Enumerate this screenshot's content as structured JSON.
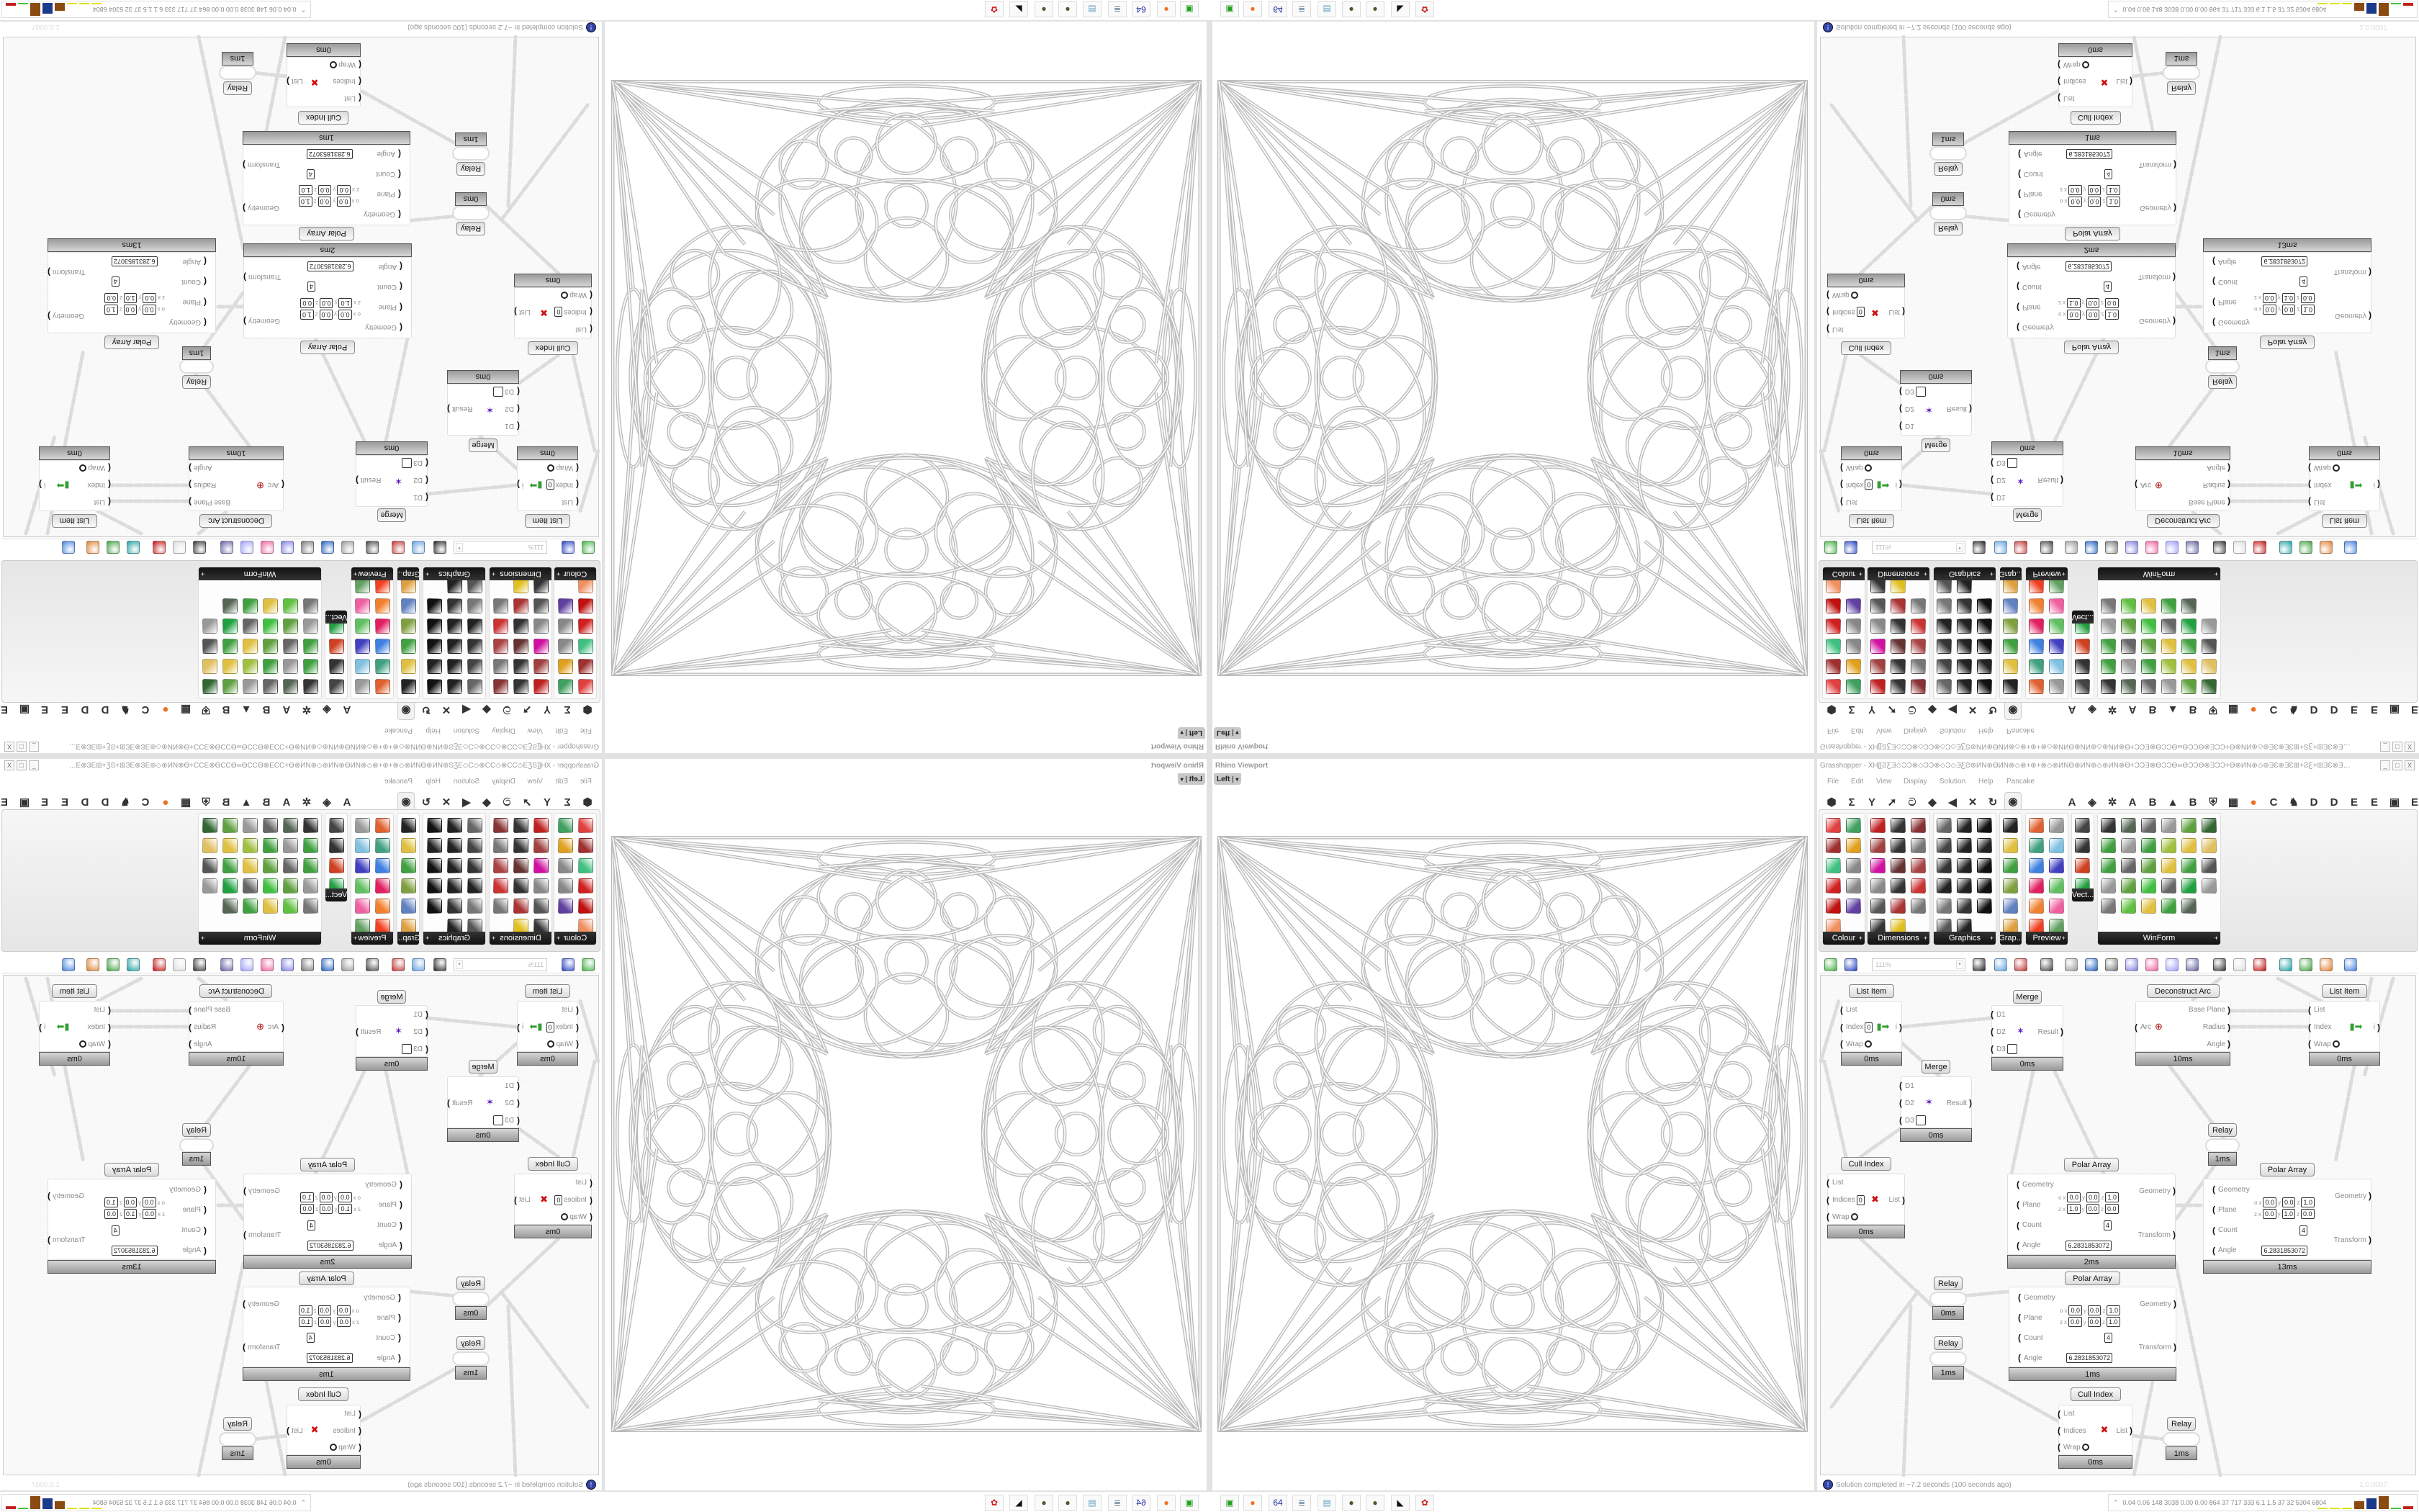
{
  "viewport": {
    "title": "Rhino Viewport",
    "view_label": "Left",
    "caret": "▾",
    "line_color": "#b8b8b8"
  },
  "gh": {
    "title": "Grasshopper - XH[[ƧƸƎ◇ƆƆ⊗◇ƆƆ⊗◇Ɔ◇ƎƸƧ⊕ИN⊕ӨИN⊗◇⊗+⊕+⊗◇⊗ИNӨ⊕ИN⊕◇⊕ИN⊗Ө+ƆƆƎ⊗ӨƆƆӨ∞ӨƆƆӨ⊗ƎƆƆ+Ө⊗ИN⊕◇⊕ƎƐ⊗ƎƐ⊞+ƧƸ+⊞ƎƐ⊗ƎƐ⊕◇⊕⊗ƆƆƎƐ⊞+ƆƆ...",
    "window_buttons": [
      "_",
      "□",
      "X"
    ],
    "menu": [
      "File",
      "Edit",
      "View",
      "Display",
      "Solution",
      "Help",
      "Pancake"
    ],
    "tabs": [
      {
        "name": "params",
        "glyph": "⬢"
      },
      {
        "name": "maths",
        "glyph": "Σ"
      },
      {
        "name": "sets",
        "glyph": "Y"
      },
      {
        "name": "vector",
        "glyph": "➚"
      },
      {
        "name": "curve",
        "glyph": "ට"
      },
      {
        "name": "surface",
        "glyph": "◆"
      },
      {
        "name": "mesh",
        "glyph": "◀"
      },
      {
        "name": "intersect",
        "glyph": "✕"
      },
      {
        "name": "transform",
        "glyph": "↻"
      },
      {
        "name": "display",
        "glyph": "◉",
        "selected": true
      },
      {
        "name": "tab-a1",
        "glyph": "A"
      },
      {
        "name": "leaf",
        "glyph": "◈"
      },
      {
        "name": "gear",
        "glyph": "✲"
      },
      {
        "name": "tab-a2",
        "glyph": "A"
      },
      {
        "name": "tab-b1",
        "glyph": "B"
      },
      {
        "name": "mountain",
        "glyph": "▲"
      },
      {
        "name": "tab-b2",
        "glyph": "B"
      },
      {
        "name": "shield",
        "glyph": "⛨"
      },
      {
        "name": "grid",
        "glyph": "▦"
      },
      {
        "name": "orange-dot",
        "glyph": "●",
        "color": "#f07020"
      },
      {
        "name": "tab-c",
        "glyph": "C"
      },
      {
        "name": "rooster",
        "glyph": "♞"
      },
      {
        "name": "tab-d1",
        "glyph": "D"
      },
      {
        "name": "tab-d2",
        "glyph": "D"
      },
      {
        "name": "tab-e1",
        "glyph": "E"
      },
      {
        "name": "tab-e2",
        "glyph": "E"
      },
      {
        "name": "dotted-square",
        "glyph": "▣"
      },
      {
        "name": "tab-e3",
        "glyph": "E"
      }
    ],
    "panels": [
      {
        "label": "Colour",
        "icons": [
          "#e04040",
          "#40a060",
          "#a03030",
          "#e0a020",
          "#40c080",
          "#888888",
          "#d02020",
          "#888888",
          "#c01010",
          "#6040a0",
          "#f09060"
        ]
      },
      {
        "label": "Dimensions",
        "icons": [
          "#c02020",
          "#333333",
          "#883333",
          "#a04040",
          "#333333",
          "#777777",
          "#d010a0",
          "#663333",
          "#aa4444",
          "#888888",
          "#333333",
          "#cc3333",
          "#555555",
          "#aa3333",
          "#777777",
          "#333333",
          "#e0c020"
        ]
      },
      {
        "label": "Graphics",
        "icons": [
          "#666666",
          "#222222",
          "#111111",
          "#444444",
          "#222222",
          "#222222",
          "#333333",
          "#222222",
          "#111111",
          "#222222",
          "#222222",
          "#111111",
          "#777777",
          "#333333",
          "#111111",
          "#555555",
          "#222222"
        ]
      },
      {
        "label": "Grap...",
        "icons": [
          "#222222",
          "#e0c040",
          "#40a040",
          "#80a040",
          "#6080c0",
          "#e0a040"
        ]
      },
      {
        "label": "Preview",
        "icons": [
          "#e06030",
          "#999999",
          "#40a080",
          "#80c0e0",
          "#4080e0",
          "#4040c0",
          "#e02060",
          "#60c060",
          "#f08030",
          "#f060a0",
          "#f04020",
          "#60a060"
        ]
      },
      {
        "label": "Vect...",
        "icons": [
          "#444444",
          "#333333",
          "#d04020",
          "#20a040"
        ]
      },
      {
        "label": "WinForm",
        "icons": [
          "#333333",
          "#556655",
          "#666666",
          "#999999",
          "#60a040",
          "#336633",
          "#40a040",
          "#999999",
          "#40a040",
          "#a0c040",
          "#e0c040",
          "#e0c060",
          "#40a040",
          "#666666",
          "#60a040",
          "#e0c040",
          "#40a040",
          "#555555",
          "#999999",
          "#60a040",
          "#40c040",
          "#666666",
          "#20a040",
          "#999999",
          "#777777",
          "#60c040",
          "#e0c040",
          "#40a040",
          "#556655"
        ]
      }
    ],
    "toolbar": {
      "zoom": "111%",
      "icons": [
        {
          "name": "open-file",
          "color": "#40b040"
        },
        {
          "name": "save-file",
          "color": "#2040c0"
        },
        {
          "name": "zoom-extents",
          "color": "#222222"
        },
        {
          "name": "preview-eye",
          "color": "#60a0e0"
        },
        {
          "name": "sketch-pen",
          "color": "#c03030"
        },
        {
          "name": "cluster",
          "color": "#444444"
        },
        {
          "name": "email",
          "color": "#999999"
        },
        {
          "name": "gha",
          "color": "#2060c0"
        },
        {
          "name": "canvas-widget",
          "color": "#777777"
        },
        {
          "name": "search",
          "color": "#8080e0"
        },
        {
          "name": "package",
          "color": "#f060a0"
        },
        {
          "name": "bulb",
          "color": "#a0a0ff"
        },
        {
          "name": "wires",
          "color": "#6060a0"
        },
        {
          "name": "preview-shaded",
          "color": "#333333"
        },
        {
          "name": "preview-wire",
          "color": "#dddddd"
        },
        {
          "name": "preview-selected",
          "color": "#c01010"
        },
        {
          "name": "mesh-quality",
          "color": "#20a0a0"
        },
        {
          "name": "mesh-settings",
          "color": "#40a040"
        },
        {
          "name": "document-preview",
          "color": "#e08030"
        },
        {
          "name": "gumball",
          "color": "#4080e0"
        }
      ]
    },
    "nodes": [
      {
        "title": "List Item",
        "inputs": [
          {
            "label": "List"
          },
          {
            "label": "Index",
            "value": "0"
          },
          {
            "label": "Wrap",
            "toggle": true
          }
        ],
        "outputs": [
          "i"
        ],
        "time": "0ms",
        "glyph": "▮➡"
      },
      {
        "title": "Merge",
        "inputs": [
          {
            "label": "D1"
          },
          {
            "label": "D2"
          },
          {
            "label": "D3",
            "box": true
          }
        ],
        "outputs": [
          "Result"
        ],
        "time": "0ms",
        "glyph": "✶"
      },
      {
        "title": "Deconstruct Arc",
        "inputs": [
          {
            "label": "Arc"
          }
        ],
        "outputs": [
          "Base Plane",
          "Radius",
          "Angle"
        ],
        "time": "10ms",
        "glyph": "⊕"
      },
      {
        "title": "List Item",
        "inputs": [
          {
            "label": "List"
          },
          {
            "label": "Index"
          },
          {
            "label": "Wrap",
            "toggle": true
          }
        ],
        "outputs": [
          "i"
        ],
        "time": "0ms",
        "glyph": "▮➡"
      },
      {
        "title": "Merge",
        "inputs": [
          {
            "label": "D1"
          },
          {
            "label": "D2"
          },
          {
            "label": "D3",
            "box": true
          }
        ],
        "outputs": [
          "Result"
        ],
        "time": "0ms",
        "glyph": "✶"
      },
      {
        "title": "Relay",
        "relay": true,
        "time": "1ms"
      },
      {
        "title": "Cull Index",
        "inputs": [
          {
            "label": "List"
          },
          {
            "label": "Indices",
            "value": "0"
          },
          {
            "label": "Wrap",
            "toggle": true
          }
        ],
        "outputs": [
          "List"
        ],
        "time": "0ms",
        "glyph": "✖"
      },
      {
        "title": "Polar Array",
        "inputs": [
          {
            "label": "Geometry"
          },
          {
            "label": "Plane"
          },
          {
            "label": "Count",
            "value": "4"
          },
          {
            "label": "Angle",
            "value": "6.2831853072"
          }
        ],
        "outputs": [
          "Geometry",
          "Transform"
        ],
        "time": "2ms",
        "plane": {
          "o": [
            "0.0",
            "0.0",
            "1.0"
          ],
          "z": [
            "1.0",
            "0.0",
            "0.0"
          ]
        }
      },
      {
        "title": "Polar Array",
        "inputs": [
          {
            "label": "Geometry"
          },
          {
            "label": "Plane"
          },
          {
            "label": "Count",
            "value": "4"
          },
          {
            "label": "Angle",
            "value": "6.2831853072"
          }
        ],
        "outputs": [
          "Geometry",
          "Transform"
        ],
        "time": "13ms",
        "plane": {
          "o": [
            "0.0",
            "0.0",
            "1.0"
          ],
          "z": [
            "0.0",
            "1.0",
            "0.0"
          ]
        }
      },
      {
        "title": "Relay",
        "relay": true,
        "time": "0ms"
      },
      {
        "title": "Polar Array",
        "inputs": [
          {
            "label": "Geometry"
          },
          {
            "label": "Plane"
          },
          {
            "label": "Count",
            "value": "4"
          },
          {
            "label": "Angle",
            "value": "6.2831853072"
          }
        ],
        "outputs": [
          "Geometry",
          "Transform"
        ],
        "time": "1ms",
        "plane": {
          "o": [
            "0.0",
            "0.0",
            "1.0"
          ],
          "z": [
            "0.0",
            "0.0",
            "1.0"
          ]
        }
      },
      {
        "title": "Relay",
        "relay": true,
        "time": "1ms"
      },
      {
        "title": "Cull Index",
        "inputs": [
          {
            "label": "List"
          },
          {
            "label": "Indices"
          },
          {
            "label": "Wrap",
            "toggle": true
          }
        ],
        "outputs": [
          "List"
        ],
        "time": "0ms",
        "glyph": "✖"
      },
      {
        "title": "Relay",
        "relay": true,
        "time": "1ms"
      }
    ],
    "plane_labels": {
      "o": "o",
      "z": "z",
      "x": "x",
      "y": "y",
      "zc": "z"
    },
    "status": {
      "icon": "!",
      "text": "Solution completed in ~7.2 seconds (100 seconds ago)",
      "version": "1.0.0007"
    }
  },
  "taskbar": {
    "icons": [
      {
        "name": "terminal",
        "glyph": "▣",
        "color": "#20a020"
      },
      {
        "name": "firefox",
        "glyph": "●",
        "color": "#f07020"
      },
      {
        "name": "floppy-64",
        "glyph": "64",
        "color": "#2030a0"
      },
      {
        "name": "wordpad",
        "glyph": "≣",
        "color": "#6080a0"
      },
      {
        "name": "notepad",
        "glyph": "▤",
        "color": "#60a0c0"
      },
      {
        "name": "grasshopper-seed",
        "glyph": "●",
        "color": "#5a5030"
      },
      {
        "name": "grasshopper-seed",
        "glyph": "●",
        "color": "#5a5030"
      },
      {
        "name": "inkscape",
        "glyph": "◣",
        "color": "#111111"
      },
      {
        "name": "settings",
        "glyph": "✿",
        "color": "#d02020"
      }
    ],
    "tray_caret": "⌃",
    "tray_numbers": "0.04 0.06 148 3038 0.00 0.00 864 37 717 333 6.1 1.5 37 32 5304 6804",
    "meters": [
      {
        "color": "#e0e020",
        "level": 0.05
      },
      {
        "color": "#e0e020",
        "level": 0.05
      },
      {
        "color": "#e0e020",
        "level": 0.05
      },
      {
        "color": "#8a4a10",
        "level": 0.55
      },
      {
        "color": "#1a3a8a",
        "level": 0.75
      },
      {
        "color": "#8a4a10",
        "level": 0.9
      },
      {
        "color": "#40c040",
        "level": 0.05
      },
      {
        "color": "#c02020",
        "level": 0.2
      }
    ]
  }
}
